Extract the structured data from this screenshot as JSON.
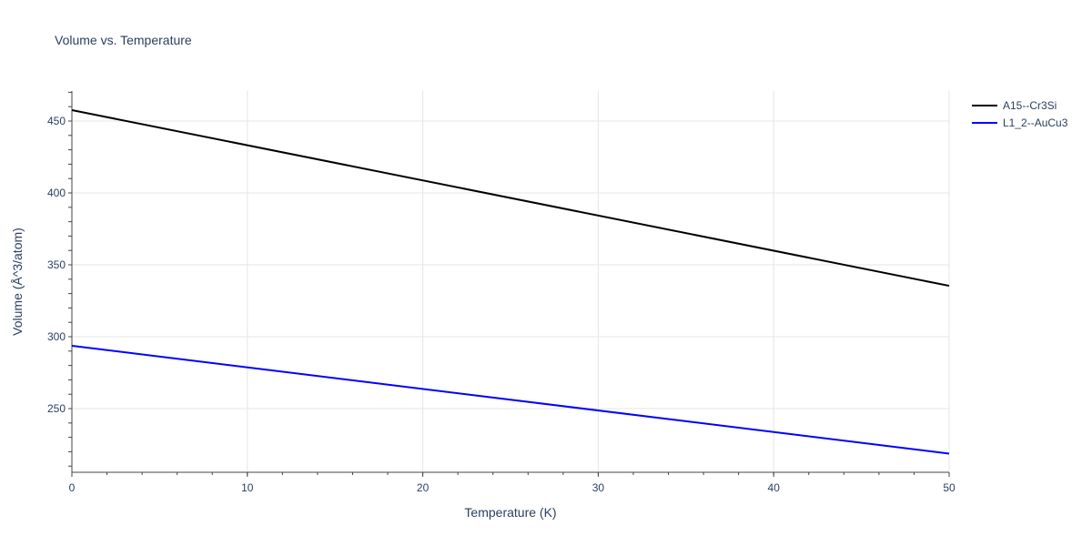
{
  "chart_data": {
    "type": "line",
    "title": "Volume vs. Temperature",
    "xlabel": "Temperature (K)",
    "ylabel": "Volume (Å^3/atom)",
    "xlim": [
      0,
      50
    ],
    "ylim": [
      205.7,
      470.9
    ],
    "xticks": [
      0,
      10,
      20,
      30,
      40,
      50
    ],
    "yticks": [
      250,
      300,
      350,
      400,
      450
    ],
    "grid": true,
    "legend_position": "right-top",
    "series": [
      {
        "name": "A15--Cr3Si",
        "color": "#000000",
        "x": [
          0,
          50
        ],
        "y": [
          457.6,
          335.4
        ]
      },
      {
        "name": "L1_2--AuCu3",
        "color": "#0000ff",
        "x": [
          0,
          50
        ],
        "y": [
          293.7,
          218.7
        ]
      }
    ]
  }
}
